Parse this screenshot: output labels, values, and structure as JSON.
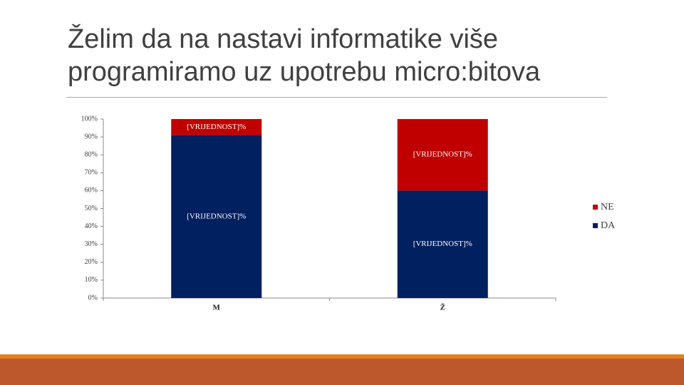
{
  "chart_data": {
    "type": "stacked_bar",
    "title": "Želim da na nastavi informatike više programiramo uz upotrebu micro:bitova",
    "categories": [
      "M",
      "Ž"
    ],
    "series": [
      {
        "name": "DA",
        "color": "#002060",
        "values": [
          91,
          60
        ],
        "value_labels": [
          "[VRIJEDNOST]%",
          "[VRIJEDNOST]%"
        ]
      },
      {
        "name": "NE",
        "color": "#c00000",
        "values": [
          9,
          40
        ],
        "value_labels": [
          "[VRIJEDNOST]%",
          "[VRIJEDNOST]%"
        ]
      }
    ],
    "ylim": [
      0,
      100
    ],
    "yticks": [
      {
        "value": 0,
        "label": "0%"
      },
      {
        "value": 10,
        "label": "10%"
      },
      {
        "value": 20,
        "label": "20%"
      },
      {
        "value": 30,
        "label": "30%"
      },
      {
        "value": 40,
        "label": "40%"
      },
      {
        "value": 50,
        "label": "50%"
      },
      {
        "value": 60,
        "label": "60%"
      },
      {
        "value": 70,
        "label": "70%"
      },
      {
        "value": 80,
        "label": "80%"
      },
      {
        "value": 90,
        "label": "90%"
      },
      {
        "value": 100,
        "label": "100%"
      }
    ],
    "legend": "right",
    "grid": false
  }
}
